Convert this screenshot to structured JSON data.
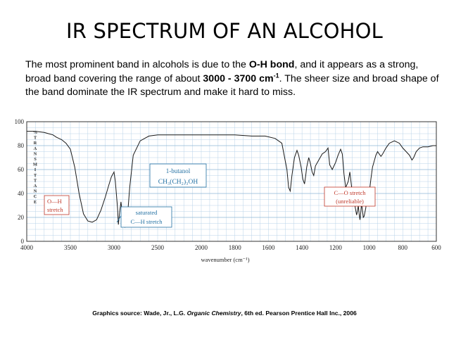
{
  "slide": {
    "title": "IR SPECTRUM OF AN ALCOHOL",
    "intro_part1": "The most prominent band in alcohols is due to the ",
    "intro_bold1": "O-H bond",
    "intro_part2": ", and it appears as a strong, broad band covering the range of about ",
    "intro_bold2": "3000 - 3700 cm",
    "intro_sup": "-1",
    "intro_part3": ". The sheer size and broad shape of the band dominate the IR spectrum and make it hard to miss.",
    "source_prefix": "Graphics source: Wade, Jr., L.G. ",
    "source_italic": "Organic Chemistry",
    "source_suffix": ", 6th ed. Pearson Prentice Hall Inc., 2006"
  },
  "chart_data": {
    "type": "line",
    "xlabel": "wavenumber (cm⁻¹)",
    "ylabel": "% TRANSMITTANCE",
    "ylim": [
      0,
      100
    ],
    "xlim": [
      4000,
      600
    ],
    "x_ticks": [
      4000,
      3500,
      3000,
      2500,
      2000,
      1800,
      1600,
      1400,
      1200,
      1000,
      800,
      600
    ],
    "y_ticks": [
      0,
      20,
      40,
      60,
      80,
      100
    ],
    "grid": true,
    "series": [
      {
        "name": "",
        "x": [
          4000,
          3900,
          3800,
          3750,
          3700,
          3660,
          3630,
          3600,
          3550,
          3500,
          3450,
          3400,
          3350,
          3300,
          3250,
          3200,
          3150,
          3100,
          3060,
          3030,
          3000,
          2985,
          2960,
          2950,
          2935,
          2920,
          2900,
          2890,
          2874,
          2860,
          2840,
          2820,
          2780,
          2700,
          2600,
          2500,
          2400,
          2300,
          2200,
          2100,
          2000,
          1900,
          1800,
          1700,
          1620,
          1560,
          1520,
          1490,
          1480,
          1470,
          1460,
          1445,
          1430,
          1420,
          1405,
          1395,
          1385,
          1378,
          1372,
          1360,
          1350,
          1340,
          1330,
          1320,
          1300,
          1280,
          1260,
          1245,
          1235,
          1220,
          1200,
          1185,
          1170,
          1160,
          1150,
          1140,
          1125,
          1115,
          1110,
          1100,
          1085,
          1075,
          1070,
          1065,
          1060,
          1055,
          1050,
          1045,
          1035,
          1030,
          1020,
          1012,
          1000,
          990,
          980,
          970,
          960,
          950,
          940,
          930,
          920,
          900,
          880,
          850,
          820,
          800,
          780,
          760,
          745,
          735,
          720,
          700,
          680,
          650,
          620,
          600
        ],
        "y": [
          92,
          92,
          91,
          90,
          89,
          87,
          86,
          85,
          82,
          77,
          62,
          40,
          23,
          17,
          16,
          18,
          26,
          37,
          47,
          54,
          58,
          50,
          28,
          14,
          25,
          33,
          20,
          14,
          12,
          22,
          26,
          45,
          72,
          84,
          88,
          89,
          89,
          89,
          89,
          89,
          89,
          89,
          89,
          88,
          88,
          86,
          82,
          60,
          45,
          42,
          55,
          70,
          76,
          72,
          62,
          52,
          48,
          55,
          62,
          70,
          65,
          58,
          55,
          63,
          68,
          73,
          75,
          78,
          64,
          60,
          66,
          72,
          77,
          73,
          56,
          45,
          50,
          58,
          52,
          40,
          30,
          22,
          25,
          30,
          23,
          18,
          24,
          32,
          20,
          21,
          28,
          40,
          40,
          52,
          62,
          67,
          72,
          75,
          73,
          71,
          73,
          78,
          82,
          84,
          82,
          78,
          75,
          72,
          68,
          70,
          75,
          78,
          79,
          79,
          80,
          80
        ]
      }
    ],
    "annotations": [
      {
        "text": "O—H",
        "color": "#c0392b"
      },
      {
        "text": "stretch",
        "color": "#c0392b"
      },
      {
        "text": "1-butanol",
        "color": "#2471a3"
      },
      {
        "text": "CH₃(CH₂)₃OH",
        "color": "#2471a3"
      },
      {
        "text": "saturated",
        "color": "#2471a3"
      },
      {
        "text": "C—H stretch",
        "color": "#2471a3"
      },
      {
        "text": "C—O stretch",
        "color": "#c0392b"
      },
      {
        "text": "(unreliable)",
        "color": "#c0392b"
      }
    ]
  }
}
